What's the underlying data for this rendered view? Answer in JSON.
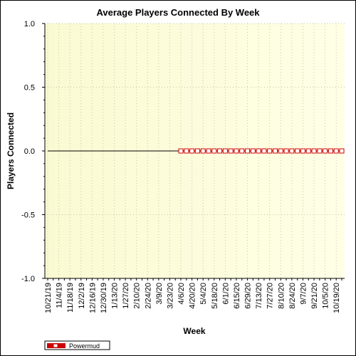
{
  "chart_data": {
    "type": "line",
    "title": "Average Players Connected By Week",
    "xlabel": "Week",
    "ylabel": "Players Connected",
    "ylim": [
      -1.0,
      1.0
    ],
    "y_ticks": [
      "1.0",
      "0.5",
      "0.0",
      "-0.5",
      "-1.0"
    ],
    "y_tick_values": [
      1.0,
      0.5,
      0.0,
      -0.5,
      -1.0
    ],
    "x_tick_labels": [
      "10/21/19",
      "11/4/19",
      "11/18/19",
      "12/2/19",
      "12/16/19",
      "12/30/19",
      "1/13/20",
      "1/27/20",
      "2/10/20",
      "2/24/20",
      "3/9/20",
      "3/23/20",
      "4/6/20",
      "4/20/20",
      "5/4/20",
      "5/18/20",
      "6/1/20",
      "6/15/20",
      "6/29/20",
      "7/13/20",
      "7/27/20",
      "8/10/20",
      "8/24/20",
      "9/7/20",
      "9/21/20",
      "10/5/20",
      "10/19/20"
    ],
    "x_weeks": [
      "10/21/19",
      "10/28/19",
      "11/4/19",
      "11/11/19",
      "11/18/19",
      "11/25/19",
      "12/2/19",
      "12/9/19",
      "12/16/19",
      "12/23/19",
      "12/30/19",
      "1/6/20",
      "1/13/20",
      "1/20/20",
      "1/27/20",
      "2/3/20",
      "2/10/20",
      "2/17/20",
      "2/24/20",
      "3/2/20",
      "3/9/20",
      "3/16/20",
      "3/23/20",
      "3/30/20",
      "4/6/20",
      "4/13/20",
      "4/20/20",
      "4/27/20",
      "5/4/20",
      "5/11/20",
      "5/18/20",
      "5/25/20",
      "6/1/20",
      "6/8/20",
      "6/15/20",
      "6/22/20",
      "6/29/20",
      "7/6/20",
      "7/13/20",
      "7/20/20",
      "7/27/20",
      "8/3/20",
      "8/10/20",
      "8/17/20",
      "8/24/20",
      "8/31/20",
      "9/7/20",
      "9/14/20",
      "9/21/20",
      "9/28/20",
      "10/5/20",
      "10/12/20",
      "10/19/20",
      "10/26/20"
    ],
    "grid": true,
    "legend_position": "bottom-left",
    "series": [
      {
        "name": "Powermud",
        "color": "#cc0000",
        "marker": "square",
        "x": [
          "4/6/20",
          "4/13/20",
          "4/20/20",
          "4/27/20",
          "5/4/20",
          "5/11/20",
          "5/18/20",
          "5/25/20",
          "6/1/20",
          "6/8/20",
          "6/15/20",
          "6/22/20",
          "6/29/20",
          "7/6/20",
          "7/13/20",
          "7/20/20",
          "7/27/20",
          "8/3/20",
          "8/10/20",
          "8/17/20",
          "8/24/20",
          "8/31/20",
          "9/7/20",
          "9/14/20",
          "9/21/20",
          "9/28/20",
          "10/5/20",
          "10/12/20",
          "10/19/20",
          "10/26/20"
        ],
        "values": [
          0,
          0,
          0,
          0,
          0,
          0,
          0,
          0,
          0,
          0,
          0,
          0,
          0,
          0,
          0,
          0,
          0,
          0,
          0,
          0,
          0,
          0,
          0,
          0,
          0,
          0,
          0,
          0,
          0,
          0
        ]
      }
    ],
    "zero_line": {
      "from": "10/21/19",
      "to": "10/26/20",
      "value": 0
    }
  },
  "colors": {
    "plot_bg_start": "#fafad2",
    "plot_bg_end": "#ffffe6",
    "series_stroke": "#cc0000",
    "marker_fill": "#ffffff",
    "grid": "#c8c8a8"
  }
}
